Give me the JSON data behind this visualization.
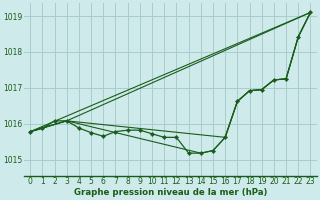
{
  "title": "Graphe pression niveau de la mer (hPa)",
  "bg_color": "#ceeaea",
  "grid_color": "#a8cccc",
  "line_color": "#1a5c1a",
  "marker_color": "#1a5c1a",
  "xlim": [
    -0.5,
    23.5
  ],
  "ylim": [
    1014.55,
    1019.35
  ],
  "yticks": [
    1015,
    1016,
    1017,
    1018,
    1019
  ],
  "xticks": [
    0,
    1,
    2,
    3,
    4,
    5,
    6,
    7,
    8,
    9,
    10,
    11,
    12,
    13,
    14,
    15,
    16,
    17,
    18,
    19,
    20,
    21,
    22,
    23
  ],
  "xlabel_fontsize": 6.2,
  "tick_fontsize": 5.5,
  "series_main_x": [
    0,
    1,
    2,
    3,
    4,
    5,
    6,
    7,
    8,
    9,
    10,
    11,
    12,
    13,
    14,
    15,
    16,
    17,
    18,
    19,
    20,
    21,
    22,
    23
  ],
  "series_main_y": [
    1015.78,
    1015.87,
    1016.08,
    1016.08,
    1015.88,
    1015.75,
    1015.65,
    1015.78,
    1015.82,
    1015.82,
    1015.72,
    1015.62,
    1015.62,
    1015.18,
    1015.18,
    1015.25,
    1015.62,
    1016.62,
    1016.92,
    1016.95,
    1017.22,
    1017.25,
    1018.42,
    1019.1
  ],
  "series_line1_x": [
    0,
    23
  ],
  "series_line1_y": [
    1015.78,
    1019.1
  ],
  "series_line2_x": [
    0,
    3,
    23
  ],
  "series_line2_y": [
    1015.78,
    1016.08,
    1019.1
  ],
  "series_line3_x": [
    0,
    3,
    16,
    17,
    18,
    19,
    20,
    21,
    22,
    23
  ],
  "series_line3_y": [
    1015.78,
    1016.08,
    1015.62,
    1016.62,
    1016.92,
    1016.95,
    1017.22,
    1017.25,
    1018.42,
    1019.1
  ],
  "series_line4_x": [
    0,
    3,
    14,
    15,
    16,
    17,
    18,
    19,
    20,
    21,
    22,
    23
  ],
  "series_line4_y": [
    1015.78,
    1016.08,
    1015.18,
    1015.25,
    1015.62,
    1016.62,
    1016.92,
    1016.95,
    1017.22,
    1017.25,
    1018.42,
    1019.1
  ]
}
